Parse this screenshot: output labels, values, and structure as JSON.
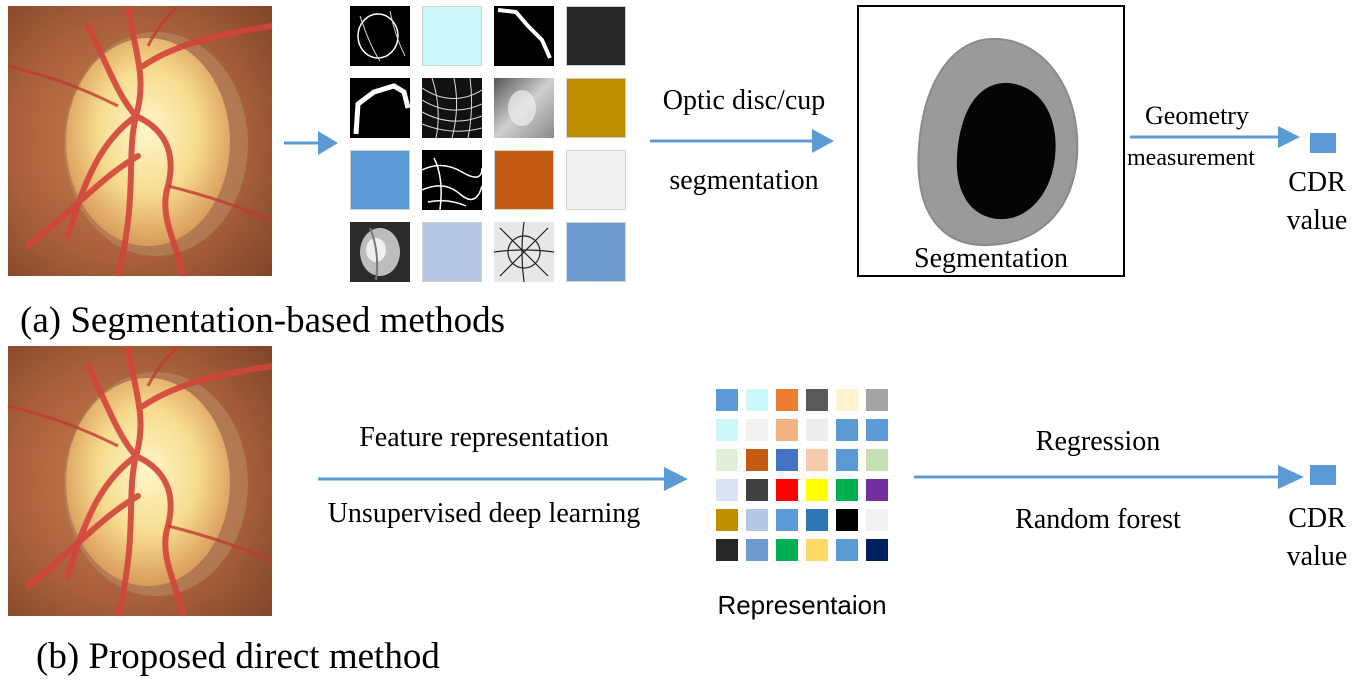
{
  "part_a": {
    "caption": "(a) Segmentation-based methods",
    "arrow1_label_line1": "Optic disc/cup",
    "arrow1_label_line2": "segmentation",
    "segmentation_caption": "Segmentation",
    "arrow2_label_line1": "Geometry",
    "arrow2_label_line2": "measurement",
    "output_line1": "CDR",
    "output_line2": "value",
    "filter_tiles": [
      {
        "kind": "edge-ring"
      },
      {
        "kind": "color",
        "color": "#ccf8fa"
      },
      {
        "kind": "edge-diag"
      },
      {
        "kind": "color",
        "color": "#262626"
      },
      {
        "kind": "edge-corner"
      },
      {
        "kind": "edge-texture"
      },
      {
        "kind": "gray-gradient"
      },
      {
        "kind": "color",
        "color": "#bf8f00"
      },
      {
        "kind": "color",
        "color": "#5b9bd5"
      },
      {
        "kind": "edge-vessels"
      },
      {
        "kind": "color",
        "color": "#c55a11"
      },
      {
        "kind": "color",
        "color": "#f0f0f0"
      },
      {
        "kind": "gray-disc"
      },
      {
        "kind": "color",
        "color": "#b4c7e7"
      },
      {
        "kind": "vessel-map"
      },
      {
        "kind": "color",
        "color": "#6f9bd0"
      }
    ]
  },
  "part_b": {
    "caption": "(b) Proposed direct method",
    "arrow1_label_line1": "Feature representation",
    "arrow1_label_line2": "Unsupervised deep learning",
    "representation_caption": "Representaion",
    "arrow2_label_line1": "Regression",
    "arrow2_label_line2": "Random forest",
    "output_line1": "CDR",
    "output_line2": "value",
    "representation_grid": [
      [
        "#5b9bd5",
        "#ccf8fa",
        "#ed7d31",
        "#595959",
        "#fff2cc",
        "#a5a5a5"
      ],
      [
        "#ccf8fa",
        "#f2f2f2",
        "#f4b183",
        "#ededed",
        "#5b9bd5",
        "#5b9bd5"
      ],
      [
        "#e2efd9",
        "#c55a11",
        "#4472c4",
        "#f8cbad",
        "#5b9bd5",
        "#c5e0b4"
      ],
      [
        "#dae3f3",
        "#404040",
        "#ff0000",
        "#ffff00",
        "#00b050",
        "#7030a0"
      ],
      [
        "#bf8f00",
        "#b4c7e7",
        "#5b9bd5",
        "#2e75b6",
        "#000000",
        "#f2f2f2"
      ],
      [
        "#262626",
        "#6f9bd0",
        "#00b050",
        "#ffd966",
        "#5b9bd5",
        "#002060"
      ]
    ]
  },
  "colors": {
    "arrow": "#5b9bd5",
    "cdr_square": "#5b9bd5",
    "disc_outer": "#9a9a9a",
    "cup_inner": "#050505"
  }
}
